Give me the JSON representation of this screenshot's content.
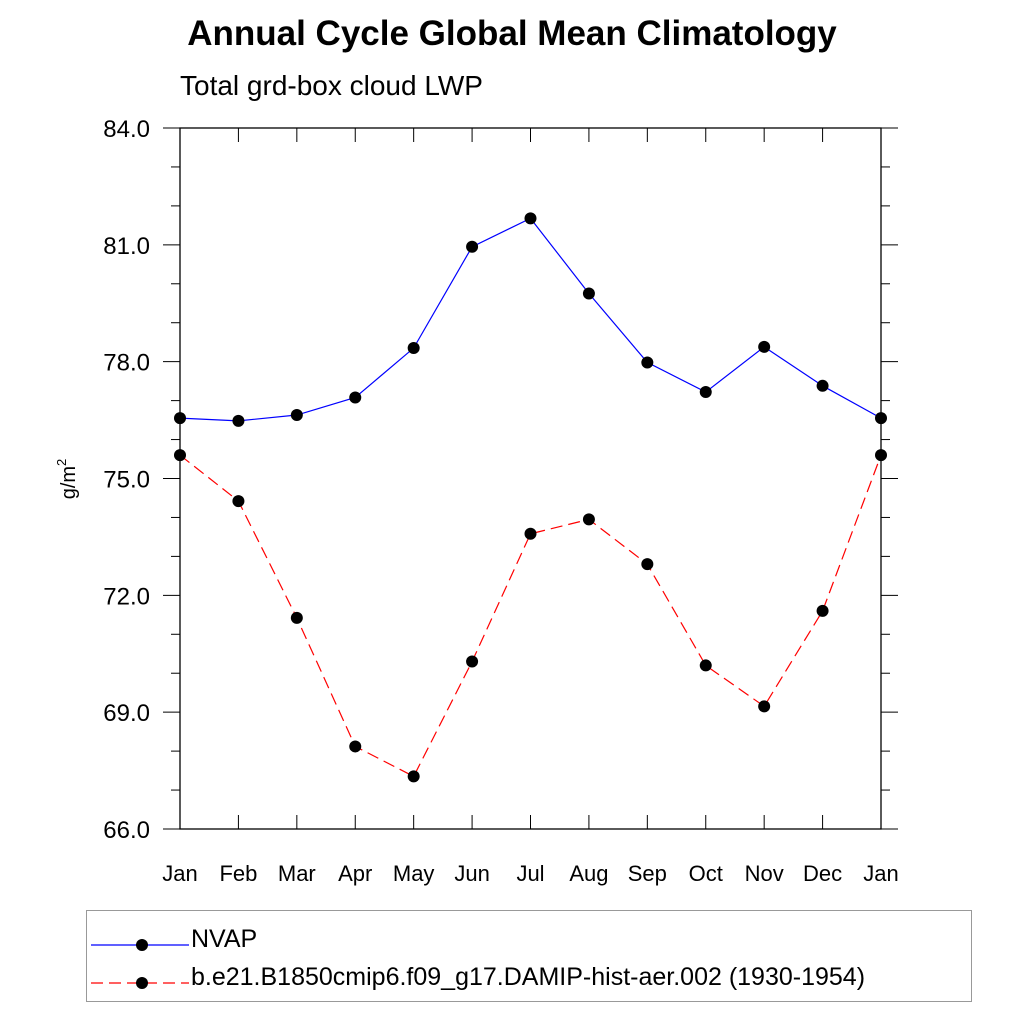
{
  "title": "Annual Cycle Global Mean Climatology",
  "subtitle": "Total grd-box cloud LWP",
  "chart_data": {
    "type": "line",
    "title": "Annual Cycle Global Mean Climatology",
    "subtitle": "Total grd-box cloud LWP",
    "xlabel": "",
    "ylabel": "g/m",
    "ylabel_superscript": "2",
    "categories": [
      "Jan",
      "Feb",
      "Mar",
      "Apr",
      "May",
      "Jun",
      "Jul",
      "Aug",
      "Sep",
      "Oct",
      "Nov",
      "Dec",
      "Jan"
    ],
    "ylim": [
      66.0,
      84.0
    ],
    "yticks": [
      "84.0",
      "81.0",
      "78.0",
      "75.0",
      "72.0",
      "69.0",
      "66.0"
    ],
    "ytick_values": [
      84.0,
      81.0,
      78.0,
      75.0,
      72.0,
      69.0,
      66.0
    ],
    "grid": false,
    "legend_position": "bottom",
    "series": [
      {
        "name": "NVAP",
        "color": "#0000ff",
        "dash": "solid",
        "values": [
          76.55,
          76.48,
          76.63,
          77.08,
          78.35,
          80.95,
          81.68,
          79.75,
          77.98,
          77.22,
          78.38,
          77.38,
          76.55
        ]
      },
      {
        "name": "b.e21.B1850cmip6.f09_g17.DAMIP-hist-aer.002 (1930-1954)",
        "color": "#ff0000",
        "dash": "dashed",
        "values": [
          75.6,
          74.42,
          71.42,
          68.12,
          67.35,
          70.3,
          73.58,
          73.95,
          72.8,
          70.2,
          69.15,
          71.6,
          75.6
        ]
      }
    ]
  }
}
